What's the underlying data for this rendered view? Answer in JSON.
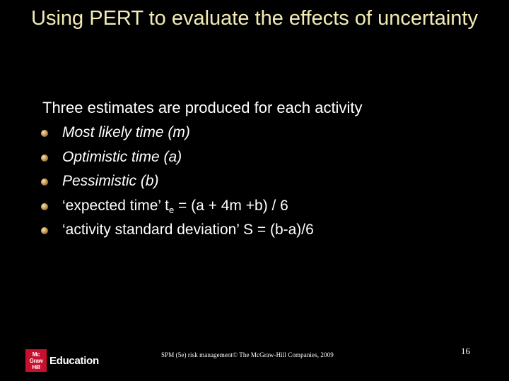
{
  "slide": {
    "title": "Using PERT to evaluate the effects of uncertainty",
    "lead": "Three estimates are produced for each activity",
    "bullets": [
      {
        "text": "Most likely time (m)",
        "italic": true
      },
      {
        "text": "Optimistic time (a)",
        "italic": true
      },
      {
        "text": "Pessimistic (b)",
        "italic": true
      },
      {
        "text_before": "‘expected time’ t",
        "subscript": "e",
        "text_after": " = (a + 4m +b) / 6",
        "italic": false
      },
      {
        "text": "‘activity standard deviation’ S = (b-a)/6",
        "italic": false
      }
    ]
  },
  "footer": {
    "copyright": "SPM (5e) risk management© The McGraw-Hill Companies, 2009",
    "page_number": "16",
    "logo": {
      "mark_lines": [
        "Mc",
        "Graw",
        "Hill"
      ],
      "word": "Education",
      "mark_color": "#c8102e"
    }
  },
  "colors": {
    "background": "#000000",
    "title": "#f2ecb4",
    "body_text": "#ffffff",
    "bullet": "#c89a55"
  }
}
